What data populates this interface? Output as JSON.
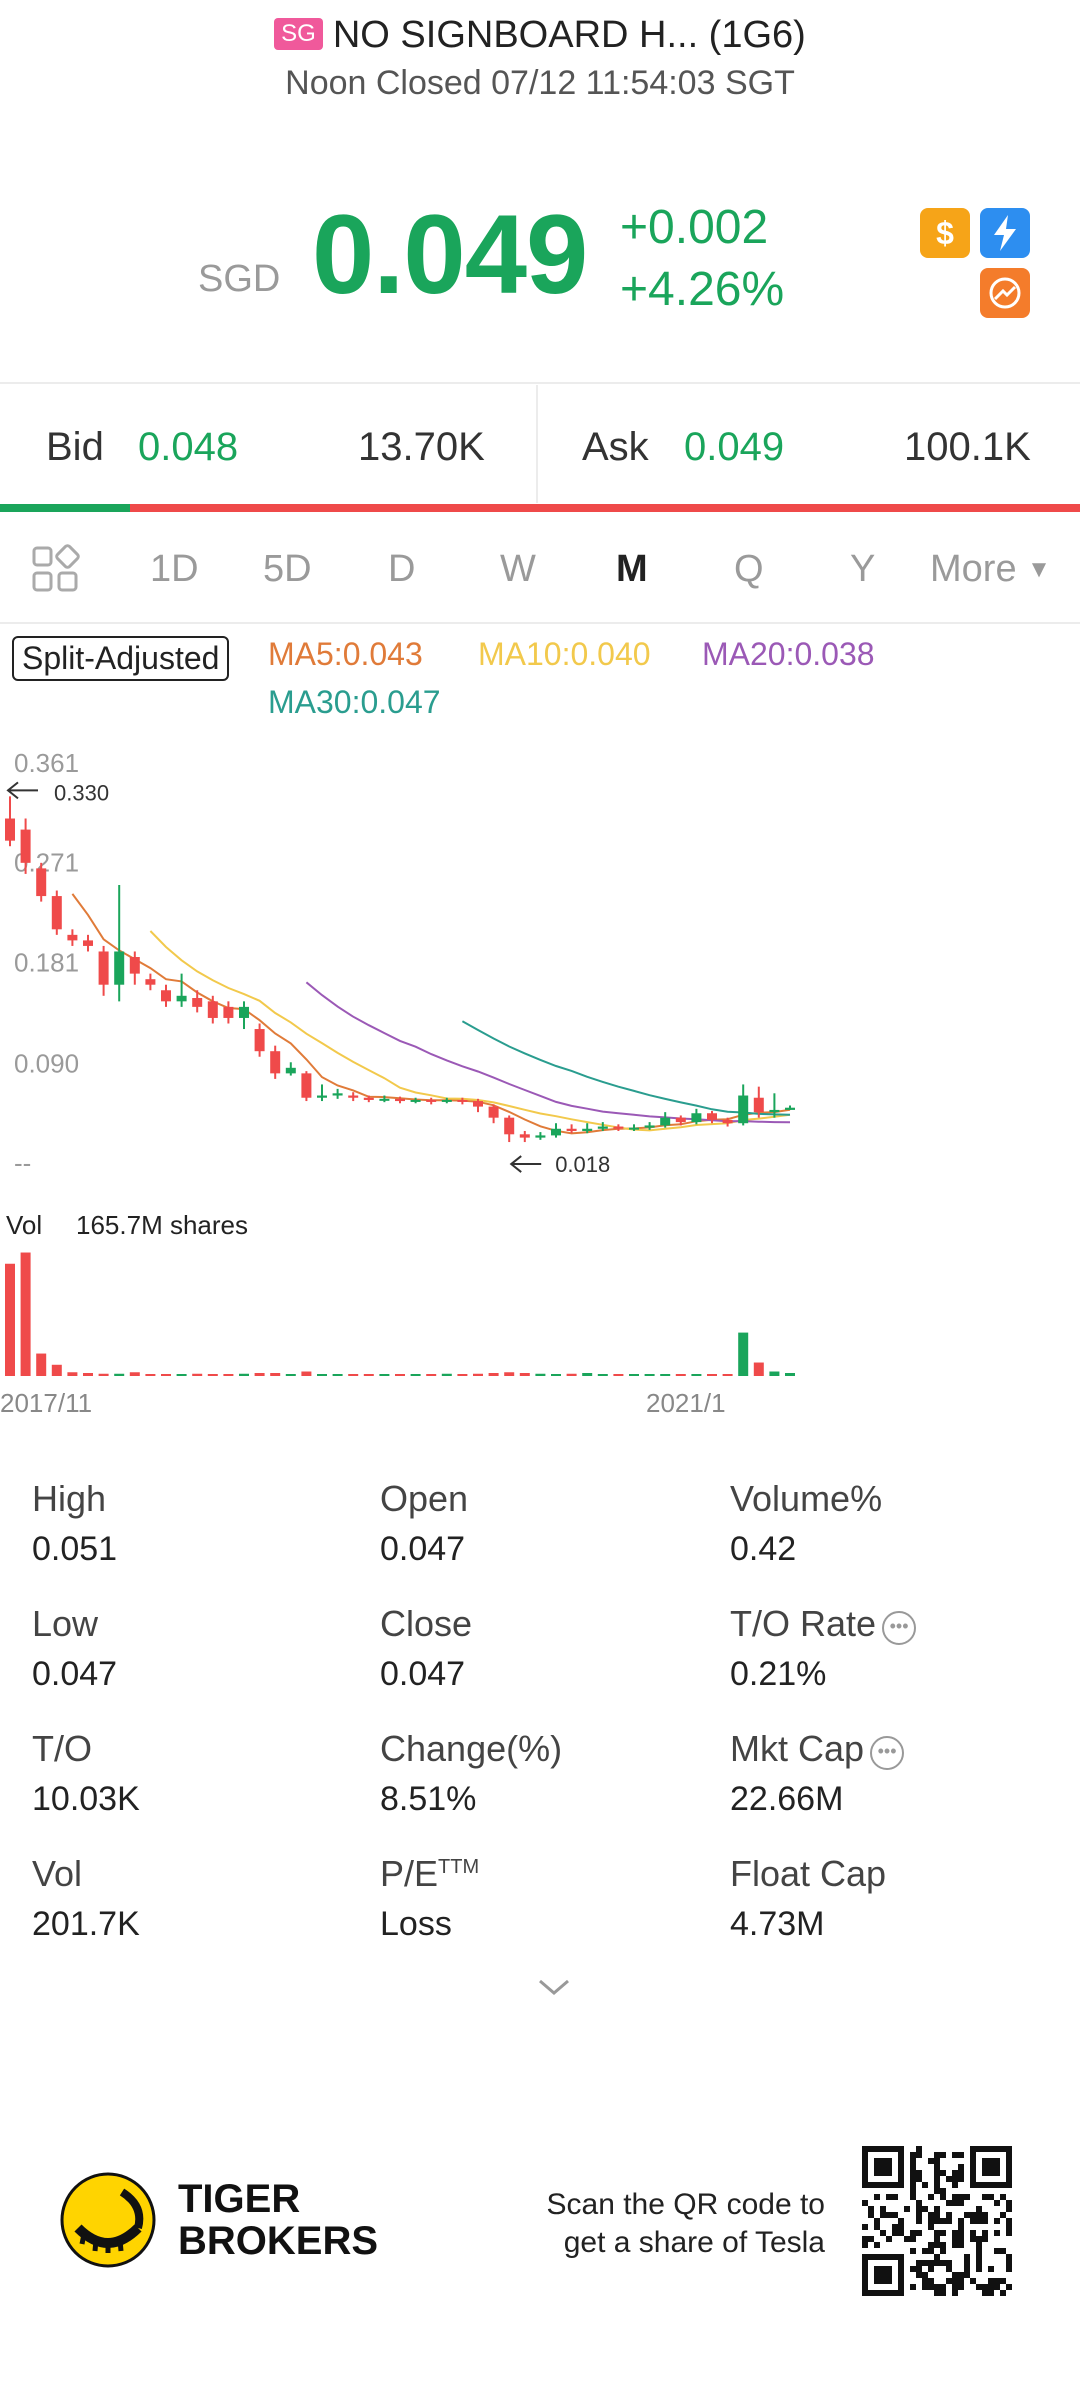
{
  "header": {
    "market_badge": "SG",
    "title": "NO SIGNBOARD H... (1G6)",
    "status": "Noon Closed 07/12 11:54:03 SGT"
  },
  "quote": {
    "currency": "SGD",
    "price": "0.049",
    "change": "+0.002",
    "change_pct": "+4.26%"
  },
  "icons": [
    "dollar-icon",
    "flash-icon",
    "cross-icon"
  ],
  "bidask": {
    "bid_label": "Bid",
    "bid_price": "0.048",
    "bid_size": "13.70K",
    "ask_label": "Ask",
    "ask_price": "0.049",
    "ask_size": "100.1K",
    "bid_ratio": 0.12
  },
  "tabs": {
    "items": [
      "1D",
      "5D",
      "D",
      "W",
      "M",
      "Q",
      "Y"
    ],
    "active": "M",
    "more": "More"
  },
  "indicators": {
    "split": "Split-Adjusted",
    "ma5": "MA5:0.043",
    "ma10": "MA10:0.040",
    "ma20": "MA20:0.038",
    "ma30": "MA30:0.047"
  },
  "colors": {
    "up": "#1aa55b",
    "down": "#ef4a4a",
    "ma5": "#e07b39",
    "ma10": "#f2c94c",
    "ma20": "#9b59b6",
    "ma30": "#2a9d8f"
  },
  "chart_data": {
    "type": "candlestick",
    "interval": "M",
    "y_tick_labels": [
      "0.361",
      "0.271",
      "0.181",
      "0.090",
      "--"
    ],
    "ylim": [
      0,
      0.361
    ],
    "high_marker": "0.330",
    "low_marker": "0.018",
    "x_tick_labels": [
      "2017/11",
      "2021/1"
    ],
    "volume_label": "Vol",
    "volume_value": "165.7M shares",
    "candles": [
      {
        "o": 0.31,
        "c": 0.29,
        "h": 0.33,
        "l": 0.285
      },
      {
        "o": 0.3,
        "c": 0.27,
        "h": 0.31,
        "l": 0.26
      },
      {
        "o": 0.265,
        "c": 0.24,
        "h": 0.27,
        "l": 0.235
      },
      {
        "o": 0.24,
        "c": 0.21,
        "h": 0.245,
        "l": 0.205
      },
      {
        "o": 0.205,
        "c": 0.2,
        "h": 0.21,
        "l": 0.195
      },
      {
        "o": 0.2,
        "c": 0.195,
        "h": 0.205,
        "l": 0.19
      },
      {
        "o": 0.19,
        "c": 0.16,
        "h": 0.195,
        "l": 0.15
      },
      {
        "o": 0.16,
        "c": 0.19,
        "h": 0.25,
        "l": 0.145
      },
      {
        "o": 0.185,
        "c": 0.17,
        "h": 0.19,
        "l": 0.16
      },
      {
        "o": 0.165,
        "c": 0.16,
        "h": 0.17,
        "l": 0.155
      },
      {
        "o": 0.155,
        "c": 0.145,
        "h": 0.16,
        "l": 0.14
      },
      {
        "o": 0.145,
        "c": 0.15,
        "h": 0.17,
        "l": 0.14
      },
      {
        "o": 0.148,
        "c": 0.14,
        "h": 0.155,
        "l": 0.135
      },
      {
        "o": 0.145,
        "c": 0.13,
        "h": 0.15,
        "l": 0.125
      },
      {
        "o": 0.14,
        "c": 0.13,
        "h": 0.145,
        "l": 0.125
      },
      {
        "o": 0.13,
        "c": 0.14,
        "h": 0.145,
        "l": 0.12
      },
      {
        "o": 0.12,
        "c": 0.1,
        "h": 0.125,
        "l": 0.095
      },
      {
        "o": 0.1,
        "c": 0.08,
        "h": 0.105,
        "l": 0.075
      },
      {
        "o": 0.08,
        "c": 0.085,
        "h": 0.09,
        "l": 0.078
      },
      {
        "o": 0.08,
        "c": 0.058,
        "h": 0.082,
        "l": 0.055
      },
      {
        "o": 0.058,
        "c": 0.06,
        "h": 0.07,
        "l": 0.055
      },
      {
        "o": 0.06,
        "c": 0.062,
        "h": 0.066,
        "l": 0.057
      },
      {
        "o": 0.06,
        "c": 0.058,
        "h": 0.063,
        "l": 0.055
      },
      {
        "o": 0.058,
        "c": 0.056,
        "h": 0.06,
        "l": 0.054
      },
      {
        "o": 0.056,
        "c": 0.057,
        "h": 0.06,
        "l": 0.054
      },
      {
        "o": 0.057,
        "c": 0.055,
        "h": 0.059,
        "l": 0.053
      },
      {
        "o": 0.055,
        "c": 0.056,
        "h": 0.058,
        "l": 0.053
      },
      {
        "o": 0.056,
        "c": 0.055,
        "h": 0.058,
        "l": 0.052
      },
      {
        "o": 0.055,
        "c": 0.056,
        "h": 0.058,
        "l": 0.053
      },
      {
        "o": 0.056,
        "c": 0.055,
        "h": 0.058,
        "l": 0.052
      },
      {
        "o": 0.055,
        "c": 0.05,
        "h": 0.057,
        "l": 0.045
      },
      {
        "o": 0.05,
        "c": 0.04,
        "h": 0.052,
        "l": 0.035
      },
      {
        "o": 0.04,
        "c": 0.025,
        "h": 0.042,
        "l": 0.018
      },
      {
        "o": 0.025,
        "c": 0.022,
        "h": 0.028,
        "l": 0.018
      },
      {
        "o": 0.022,
        "c": 0.024,
        "h": 0.027,
        "l": 0.02
      },
      {
        "o": 0.024,
        "c": 0.03,
        "h": 0.035,
        "l": 0.022
      },
      {
        "o": 0.03,
        "c": 0.028,
        "h": 0.034,
        "l": 0.026
      },
      {
        "o": 0.028,
        "c": 0.03,
        "h": 0.035,
        "l": 0.026
      },
      {
        "o": 0.03,
        "c": 0.032,
        "h": 0.036,
        "l": 0.028
      },
      {
        "o": 0.032,
        "c": 0.03,
        "h": 0.034,
        "l": 0.028
      },
      {
        "o": 0.03,
        "c": 0.031,
        "h": 0.034,
        "l": 0.028
      },
      {
        "o": 0.031,
        "c": 0.033,
        "h": 0.036,
        "l": 0.029
      },
      {
        "o": 0.033,
        "c": 0.04,
        "h": 0.045,
        "l": 0.031
      },
      {
        "o": 0.04,
        "c": 0.036,
        "h": 0.042,
        "l": 0.033
      },
      {
        "o": 0.036,
        "c": 0.044,
        "h": 0.048,
        "l": 0.034
      },
      {
        "o": 0.044,
        "c": 0.038,
        "h": 0.046,
        "l": 0.035
      },
      {
        "o": 0.038,
        "c": 0.035,
        "h": 0.04,
        "l": 0.032
      },
      {
        "o": 0.035,
        "c": 0.06,
        "h": 0.07,
        "l": 0.033
      },
      {
        "o": 0.058,
        "c": 0.045,
        "h": 0.068,
        "l": 0.04
      },
      {
        "o": 0.045,
        "c": 0.047,
        "h": 0.062,
        "l": 0.04
      },
      {
        "o": 0.047,
        "c": 0.049,
        "h": 0.051,
        "l": 0.047
      }
    ],
    "volumes": [
      150,
      165,
      30,
      15,
      5,
      4,
      3,
      3,
      5,
      2,
      2,
      2,
      3,
      2,
      2,
      3,
      4,
      4,
      2,
      6,
      2,
      2,
      2,
      2,
      2,
      2,
      2,
      2,
      3,
      2,
      3,
      4,
      5,
      4,
      3,
      2,
      3,
      4,
      2,
      2,
      1,
      1,
      1,
      1,
      1,
      1,
      2,
      58,
      18,
      6,
      4
    ],
    "volume_max": 165.7
  },
  "stats": [
    {
      "label": "High",
      "value": "0.051"
    },
    {
      "label": "Open",
      "value": "0.047"
    },
    {
      "label": "Volume%",
      "value": "0.42"
    },
    {
      "label": "Low",
      "value": "0.047"
    },
    {
      "label": "Close",
      "value": "0.047"
    },
    {
      "label": "T/O Rate",
      "value": "0.21%"
    },
    {
      "label": "T/O",
      "value": "10.03K"
    },
    {
      "label": "Change(%)",
      "value": "8.51%"
    },
    {
      "label": "Mkt Cap",
      "value": "22.66M"
    },
    {
      "label": "Vol",
      "value": "201.7K"
    },
    {
      "label": "P/E",
      "value": "Loss",
      "sup": "TTM"
    },
    {
      "label": "Float Cap",
      "value": "4.73M"
    }
  ],
  "footer": {
    "brand_line1": "TIGER",
    "brand_line2": "BROKERS",
    "promo_line1": "Scan the QR code to",
    "promo_line2": "get a share of Tesla"
  }
}
